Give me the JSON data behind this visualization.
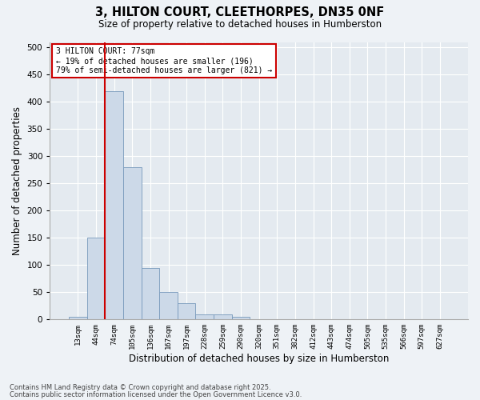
{
  "title_line1": "3, HILTON COURT, CLEETHORPES, DN35 0NF",
  "title_line2": "Size of property relative to detached houses in Humberston",
  "xlabel": "Distribution of detached houses by size in Humberston",
  "ylabel": "Number of detached properties",
  "bar_color": "#ccd9e8",
  "bar_edge_color": "#7799bb",
  "categories": [
    "13sqm",
    "44sqm",
    "74sqm",
    "105sqm",
    "136sqm",
    "167sqm",
    "197sqm",
    "228sqm",
    "259sqm",
    "290sqm",
    "320sqm",
    "351sqm",
    "382sqm",
    "412sqm",
    "443sqm",
    "474sqm",
    "505sqm",
    "535sqm",
    "566sqm",
    "597sqm",
    "627sqm"
  ],
  "values": [
    5,
    150,
    420,
    280,
    95,
    50,
    30,
    10,
    10,
    5,
    0,
    0,
    0,
    0,
    0,
    0,
    0,
    0,
    0,
    0,
    0
  ],
  "ylim": [
    0,
    510
  ],
  "yticks": [
    0,
    50,
    100,
    150,
    200,
    250,
    300,
    350,
    400,
    450,
    500
  ],
  "property_line_bin": 2,
  "annotation_text": "3 HILTON COURT: 77sqm\n← 19% of detached houses are smaller (196)\n79% of semi-detached houses are larger (821) →",
  "annotation_box_color": "#cc0000",
  "footnote_line1": "Contains HM Land Registry data © Crown copyright and database right 2025.",
  "footnote_line2": "Contains public sector information licensed under the Open Government Licence v3.0.",
  "background_color": "#eef2f6",
  "plot_bg_color": "#e4eaf0",
  "grid_color": "#ffffff"
}
